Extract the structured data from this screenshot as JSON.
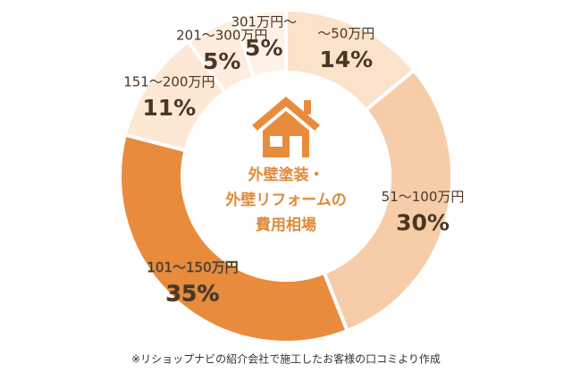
{
  "chart_data": {
    "type": "pie",
    "donut": true,
    "title": [
      "外壁塗装・",
      "外壁リフォームの",
      "費用相場"
    ],
    "categories": [
      "〜50万円",
      "51〜100万円",
      "101〜150万円",
      "151〜200万円",
      "201〜300万円",
      "301万円〜"
    ],
    "values": [
      14,
      30,
      35,
      11,
      5,
      5
    ],
    "value_labels": [
      "14%",
      "30%",
      "35%",
      "11%",
      "5%",
      "5%"
    ],
    "colors": [
      "#fbe2cb",
      "#f6cda8",
      "#e98b3c",
      "#fde8d5",
      "#fdeddf",
      "#fef2e7"
    ],
    "note": "※リショップナビの紹介会社で施工したお客様の口コミより作成"
  }
}
